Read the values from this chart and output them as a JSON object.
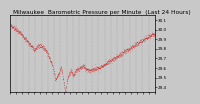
{
  "title": "Milwaukee  Barometric Pressure per Minute  (Last 24 Hours)",
  "line_color": "#cc0000",
  "bg_color": "#c8c8c8",
  "plot_bg_color": "#c8c8c8",
  "grid_color": "#888888",
  "ylim": [
    29.35,
    30.15
  ],
  "yticks": [
    29.4,
    29.5,
    29.6,
    29.7,
    29.8,
    29.9,
    30.0,
    30.1
  ],
  "num_points": 1440,
  "title_fontsize": 4.2,
  "tick_fontsize": 3.0,
  "num_grids": 23
}
